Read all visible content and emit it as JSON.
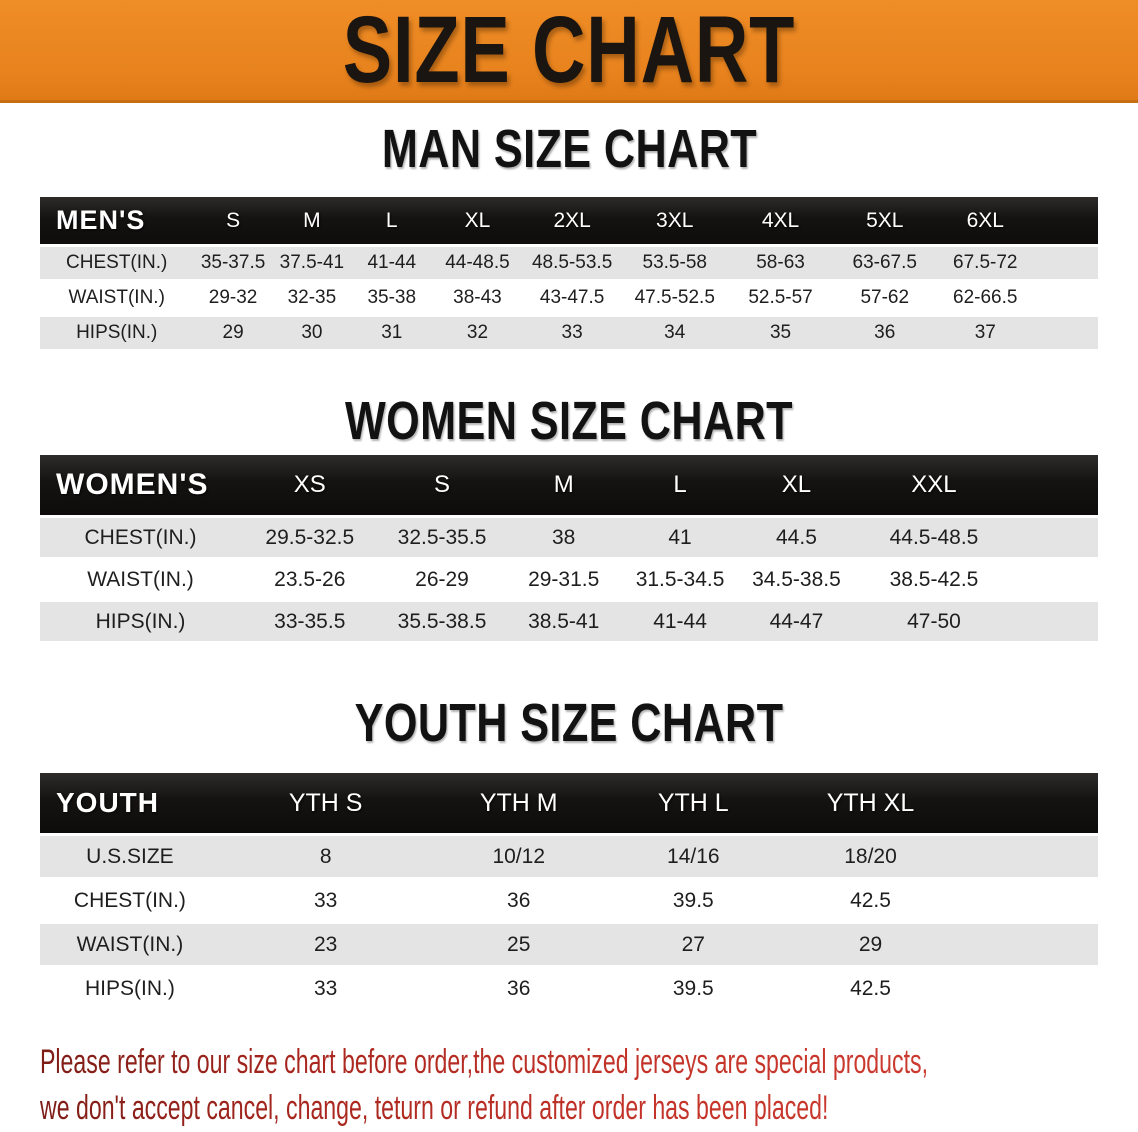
{
  "banner": {
    "title": "SIZE CHART",
    "background_color": "#E8831E",
    "text_color": "#1A1510"
  },
  "sections": [
    {
      "id": "men",
      "heading": "MAN SIZE CHART",
      "table": {
        "corner_label": "MEN'S",
        "columns": [
          "S",
          "M",
          "L",
          "XL",
          "2XL",
          "3XL",
          "4XL",
          "5XL",
          "6XL"
        ],
        "rows": [
          {
            "label": "CHEST(IN.)",
            "values": [
              "35-37.5",
              "37.5-41",
              "41-44",
              "44-48.5",
              "48.5-53.5",
              "53.5-58",
              "58-63",
              "63-67.5",
              "67.5-72"
            ]
          },
          {
            "label": "WAIST(IN.)",
            "values": [
              "29-32",
              "32-35",
              "35-38",
              "38-43",
              "43-47.5",
              "47.5-52.5",
              "52.5-57",
              "57-62",
              "62-66.5"
            ]
          },
          {
            "label": "HIPS(IN.)",
            "values": [
              "29",
              "30",
              "31",
              "32",
              "33",
              "34",
              "35",
              "36",
              "37"
            ]
          }
        ]
      }
    },
    {
      "id": "women",
      "heading": "WOMEN SIZE CHART",
      "table": {
        "corner_label": "WOMEN'S",
        "columns": [
          "XS",
          "S",
          "M",
          "L",
          "XL",
          "XXL"
        ],
        "rows": [
          {
            "label": "CHEST(IN.)",
            "values": [
              "29.5-32.5",
              "32.5-35.5",
              "38",
              "41",
              "44.5",
              "44.5-48.5"
            ]
          },
          {
            "label": "WAIST(IN.)",
            "values": [
              "23.5-26",
              "26-29",
              "29-31.5",
              "31.5-34.5",
              "34.5-38.5",
              "38.5-42.5"
            ]
          },
          {
            "label": "HIPS(IN.)",
            "values": [
              "33-35.5",
              "35.5-38.5",
              "38.5-41",
              "41-44",
              "44-47",
              "47-50"
            ]
          }
        ]
      }
    },
    {
      "id": "youth",
      "heading": "YOUTH SIZE CHART",
      "table": {
        "corner_label": "YOUTH",
        "columns": [
          "YTH S",
          "YTH M",
          "YTH L",
          "YTH XL"
        ],
        "rows": [
          {
            "label": "U.S.SIZE",
            "values": [
              "8",
              "10/12",
              "14/16",
              "18/20"
            ]
          },
          {
            "label": "CHEST(IN.)",
            "values": [
              "33",
              "36",
              "39.5",
              "42.5"
            ]
          },
          {
            "label": "WAIST(IN.)",
            "values": [
              "23",
              "25",
              "27",
              "29"
            ]
          },
          {
            "label": "HIPS(IN.)",
            "values": [
              "33",
              "36",
              "39.5",
              "42.5"
            ]
          }
        ]
      }
    }
  ],
  "footer": {
    "line1": "Please refer to our size chart before order,the customized jerseys are special products,",
    "line2": "we don't accept cancel, change, teturn or refund after order has been placed!",
    "text_color": "#A8271F"
  },
  "colors": {
    "table_header_bg": "#151312",
    "table_header_text": "#FFFFFF",
    "row_shade": "#E4E4E4",
    "body_text": "#1E1E1E"
  }
}
